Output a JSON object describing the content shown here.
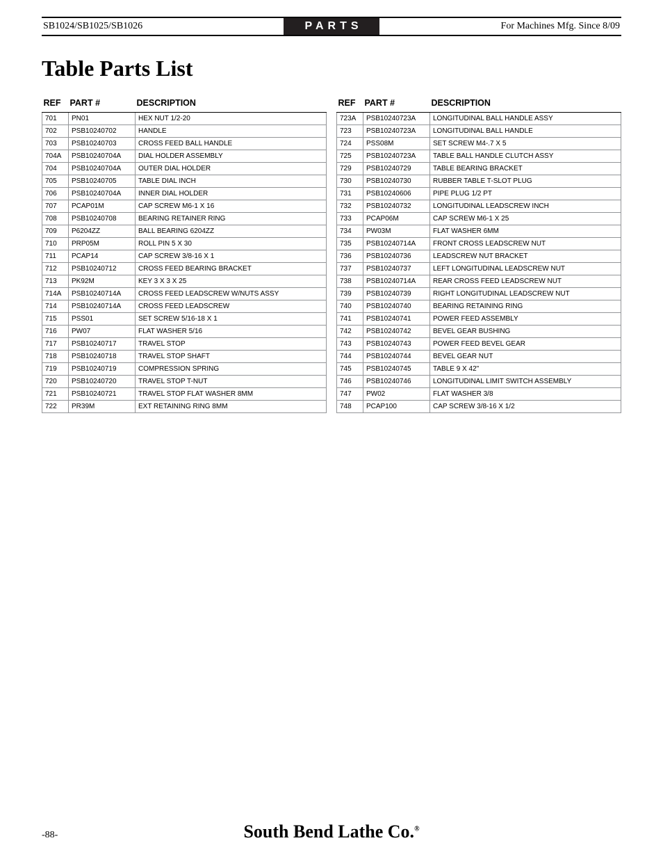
{
  "header": {
    "left": "SB1024/SB1025/SB1026",
    "center": "PARTS",
    "right": "For Machines Mfg. Since 8/09"
  },
  "title": "Table Parts List",
  "columns": {
    "ref": "REF",
    "part": "PART #",
    "desc": "DESCRIPTION"
  },
  "left_table": [
    [
      "701",
      "PN01",
      "HEX NUT 1/2-20"
    ],
    [
      "702",
      "PSB10240702",
      "HANDLE"
    ],
    [
      "703",
      "PSB10240703",
      "CROSS FEED BALL HANDLE"
    ],
    [
      "704A",
      "PSB10240704A",
      "DIAL HOLDER ASSEMBLY"
    ],
    [
      "704",
      "PSB10240704A",
      "OUTER DIAL HOLDER"
    ],
    [
      "705",
      "PSB10240705",
      "TABLE DIAL INCH"
    ],
    [
      "706",
      "PSB10240704A",
      "INNER DIAL HOLDER"
    ],
    [
      "707",
      "PCAP01M",
      "CAP SCREW M6-1 X 16"
    ],
    [
      "708",
      "PSB10240708",
      "BEARING RETAINER RING"
    ],
    [
      "709",
      "P6204ZZ",
      "BALL BEARING 6204ZZ"
    ],
    [
      "710",
      "PRP05M",
      "ROLL PIN 5 X 30"
    ],
    [
      "711",
      "PCAP14",
      "CAP SCREW 3/8-16 X 1"
    ],
    [
      "712",
      "PSB10240712",
      "CROSS FEED BEARING BRACKET"
    ],
    [
      "713",
      "PK92M",
      "KEY 3 X 3 X 25"
    ],
    [
      "714A",
      "PSB10240714A",
      "CROSS FEED LEADSCREW W/NUTS ASSY"
    ],
    [
      "714",
      "PSB10240714A",
      "CROSS FEED LEADSCREW"
    ],
    [
      "715",
      "PSS01",
      "SET SCREW 5/16-18 X 1"
    ],
    [
      "716",
      "PW07",
      "FLAT WASHER 5/16"
    ],
    [
      "717",
      "PSB10240717",
      "TRAVEL STOP"
    ],
    [
      "718",
      "PSB10240718",
      "TRAVEL STOP SHAFT"
    ],
    [
      "719",
      "PSB10240719",
      "COMPRESSION SPRING"
    ],
    [
      "720",
      "PSB10240720",
      "TRAVEL STOP T-NUT"
    ],
    [
      "721",
      "PSB10240721",
      "TRAVEL STOP FLAT WASHER 8MM"
    ],
    [
      "722",
      "PR39M",
      "EXT RETAINING RING 8MM"
    ]
  ],
  "right_table": [
    [
      "723A",
      "PSB10240723A",
      "LONGITUDINAL BALL HANDLE ASSY"
    ],
    [
      "723",
      "PSB10240723A",
      "LONGITUDINAL BALL HANDLE"
    ],
    [
      "724",
      "PSS08M",
      "SET SCREW M4-.7 X 5"
    ],
    [
      "725",
      "PSB10240723A",
      "TABLE BALL HANDLE CLUTCH ASSY"
    ],
    [
      "729",
      "PSB10240729",
      "TABLE BEARING BRACKET"
    ],
    [
      "730",
      "PSB10240730",
      "RUBBER TABLE T-SLOT PLUG"
    ],
    [
      "731",
      "PSB10240606",
      "PIPE PLUG 1/2 PT"
    ],
    [
      "732",
      "PSB10240732",
      "LONGITUDINAL LEADSCREW INCH"
    ],
    [
      "733",
      "PCAP06M",
      "CAP SCREW M6-1 X 25"
    ],
    [
      "734",
      "PW03M",
      "FLAT WASHER 6MM"
    ],
    [
      "735",
      "PSB10240714A",
      "FRONT CROSS LEADSCREW NUT"
    ],
    [
      "736",
      "PSB10240736",
      "LEADSCREW NUT BRACKET"
    ],
    [
      "737",
      "PSB10240737",
      "LEFT LONGITUDINAL LEADSCREW NUT"
    ],
    [
      "738",
      "PSB10240714A",
      "REAR CROSS FEED LEADSCREW NUT"
    ],
    [
      "739",
      "PSB10240739",
      "RIGHT LONGITUDINAL LEADSCREW NUT"
    ],
    [
      "740",
      "PSB10240740",
      "BEARING RETAINING RING"
    ],
    [
      "741",
      "PSB10240741",
      "POWER FEED ASSEMBLY"
    ],
    [
      "742",
      "PSB10240742",
      "BEVEL GEAR BUSHING"
    ],
    [
      "743",
      "PSB10240743",
      "POWER FEED BEVEL GEAR"
    ],
    [
      "744",
      "PSB10240744",
      "BEVEL GEAR NUT"
    ],
    [
      "745",
      "PSB10240745",
      "TABLE 9 X 42\""
    ],
    [
      "746",
      "PSB10240746",
      "LONGITUDINAL LIMIT SWITCH ASSEMBLY"
    ],
    [
      "747",
      "PW02",
      "FLAT WASHER 3/8"
    ],
    [
      "748",
      "PCAP100",
      "CAP SCREW 3/8-16 X 1/2"
    ]
  ],
  "footer": {
    "page": "-88-",
    "brand": "South Bend Lathe Co."
  }
}
